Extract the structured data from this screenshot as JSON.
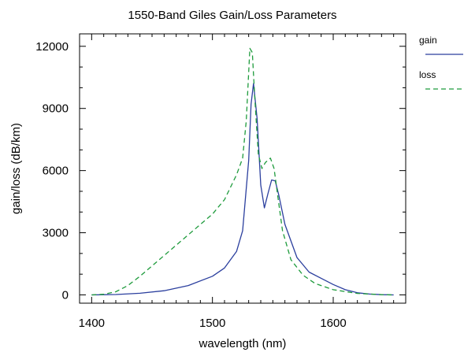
{
  "chart_data": {
    "type": "line",
    "title": "1550-Band Giles Gain/Loss Parameters",
    "xlabel": "wavelength (nm)",
    "ylabel": "gain/loss (dB/km)",
    "xlim": [
      1390,
      1660
    ],
    "ylim": [
      -400,
      12600
    ],
    "xticks": [
      1400,
      1500,
      1600
    ],
    "yticks": [
      0,
      3000,
      6000,
      9000,
      12000
    ],
    "grid": false,
    "legend_position": "right",
    "series": [
      {
        "name": "gain",
        "color": "#2b3f9e",
        "style": "solid",
        "x": [
          1400,
          1420,
          1440,
          1460,
          1480,
          1500,
          1510,
          1520,
          1525,
          1530,
          1532,
          1534,
          1537,
          1540,
          1543,
          1546,
          1549,
          1552,
          1555,
          1560,
          1570,
          1580,
          1590,
          1600,
          1610,
          1620,
          1630,
          1640,
          1650
        ],
        "y": [
          0,
          20,
          80,
          200,
          450,
          900,
          1300,
          2100,
          3100,
          6500,
          9200,
          10200,
          8500,
          5300,
          4200,
          4900,
          5550,
          5500,
          4800,
          3400,
          1800,
          1100,
          800,
          500,
          250,
          100,
          40,
          10,
          0
        ]
      },
      {
        "name": "loss",
        "color": "#1e9b3c",
        "style": "dashed",
        "x": [
          1400,
          1410,
          1420,
          1430,
          1440,
          1460,
          1480,
          1500,
          1510,
          1520,
          1525,
          1528,
          1531,
          1533,
          1535,
          1538,
          1541,
          1544,
          1548,
          1551,
          1554,
          1558,
          1565,
          1575,
          1585,
          1600,
          1620,
          1640,
          1650
        ],
        "y": [
          0,
          30,
          150,
          450,
          900,
          1900,
          2900,
          3900,
          4600,
          5800,
          6600,
          8400,
          11900,
          11700,
          9600,
          6800,
          6100,
          6400,
          6600,
          6100,
          4800,
          3100,
          1700,
          950,
          550,
          250,
          70,
          10,
          0
        ]
      }
    ]
  }
}
